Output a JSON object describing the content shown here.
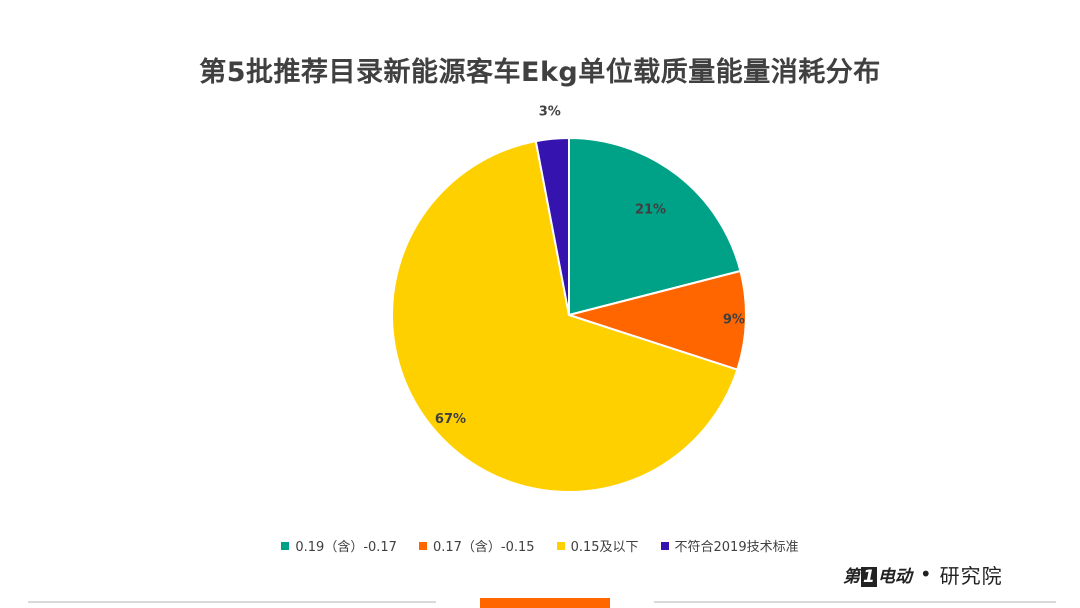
{
  "chart_data": {
    "type": "pie",
    "title": "第5批推荐目录新能源客车Ekg单位载质量能量消耗分布",
    "slices": [
      {
        "name": "0.19（含）-0.17",
        "value": 21,
        "label": "21%",
        "color": "#00A287"
      },
      {
        "name": "0.17（含）-0.15",
        "value": 9,
        "label": "9%",
        "color": "#FF6600"
      },
      {
        "name": "0.15及以下",
        "value": 67,
        "label": "67%",
        "color": "#FFD000"
      },
      {
        "name": "不符合2019技术标准",
        "value": 3,
        "label": "3%",
        "color": "#3413AE"
      }
    ],
    "legend_position": "bottom"
  },
  "brand": {
    "logo_prefix": "第",
    "logo_number": "1",
    "logo_suffix": "电动",
    "separator": "•",
    "text": "研究院"
  }
}
